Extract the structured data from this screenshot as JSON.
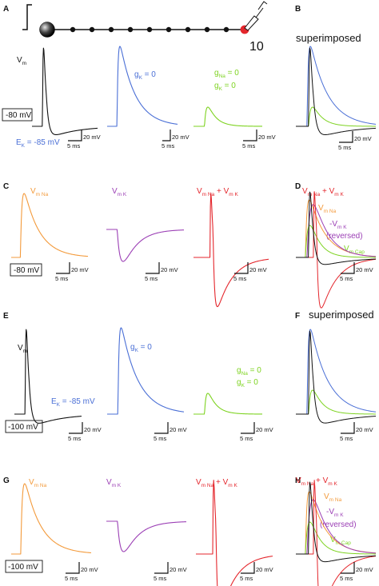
{
  "colors": {
    "black": "#111111",
    "blue": "#4a6fd6",
    "green": "#7ed321",
    "orange": "#f39a3b",
    "purple": "#9b3fb5",
    "red": "#e4262c"
  },
  "panels": {
    "A": "A",
    "B": "B",
    "C": "C",
    "D": "D",
    "E": "E",
    "F": "F",
    "G": "G",
    "H": "H"
  },
  "neuron": {
    "compartment_label": "10",
    "compartments": 10
  },
  "superimposed_label": "superimposed",
  "vm_label": {
    "main": "V",
    "sub": "m"
  },
  "gk_label": {
    "main": "g",
    "sub": "K",
    "rest": " = 0"
  },
  "gna_label": {
    "main": "g",
    "sub": "Na",
    "rest": " = 0"
  },
  "ek_label_top": "E",
  "ek_sub": "K",
  "ek_value": " = -85 mV",
  "hold_top": "-80 mV",
  "hold_bottom": "-100 mV",
  "scalebar": {
    "time": "5 ms",
    "voltage": "20 mV"
  },
  "components": {
    "vmna": {
      "main": "V",
      "sub": "m Na"
    },
    "vmk": {
      "main": "V",
      "sub": "m K"
    },
    "sum_a": "V",
    "sum_b": "m Na",
    "sum_c": " + V",
    "sum_d": "m K",
    "rev_prefix": "-V",
    "rev_sub": "m K",
    "reversed": "(reversed)",
    "vmcap": {
      "main": "V",
      "sub": "m Cap"
    }
  }
}
